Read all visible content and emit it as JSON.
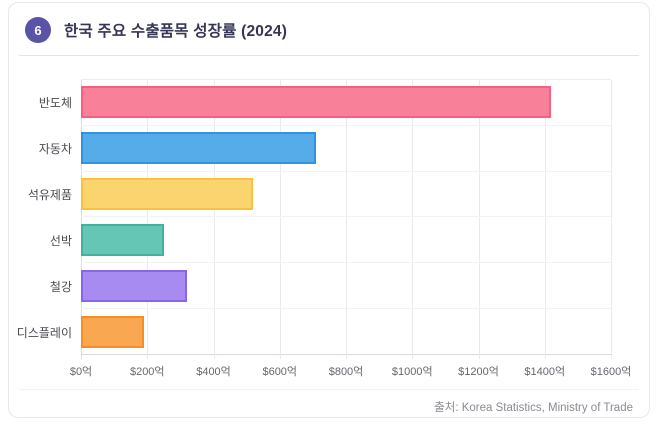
{
  "header": {
    "badge": "6",
    "title": "한국 주요 수출품목 성장률 (2024)"
  },
  "colors": {
    "badge_bg": "#5a54a6",
    "title_text": "#363654",
    "axis_label": "#67676f",
    "category_label": "#4b4b52",
    "source_text": "#8b8b93"
  },
  "chart_data": {
    "type": "bar",
    "orientation": "horizontal",
    "title": "한국 주요 수출품목 성장률 (2024)",
    "categories": [
      "반도체",
      "자동차",
      "석유제품",
      "선박",
      "철강",
      "디스플레이"
    ],
    "category_ids": [
      "semiconductors",
      "automobiles",
      "petroleum-products",
      "ships",
      "steel",
      "displays"
    ],
    "values": [
      1420,
      710,
      520,
      250,
      320,
      190
    ],
    "value_unit": "억 달러 (USD hundred-million)",
    "xlabel": "",
    "ylabel": "",
    "xlim": [
      0,
      1600
    ],
    "x_tick_values": [
      0,
      200,
      400,
      600,
      800,
      1000,
      1200,
      1400,
      1600
    ],
    "x_tick_labels": [
      "$0억",
      "$200억",
      "$400억",
      "$600억",
      "$800억",
      "$1000억",
      "$1200억",
      "$1400억",
      "$1600억"
    ],
    "grid": true,
    "legend": false,
    "bar_fill_colors": [
      "#F88098",
      "#55ACE8",
      "#FBD36F",
      "#66C6B6",
      "#A78BF0",
      "#F9A851"
    ],
    "bar_border_colors": [
      "#F46082",
      "#2F94DD",
      "#F8C23B",
      "#41B2A0",
      "#8B64EC",
      "#F78D23"
    ]
  },
  "footer": {
    "source": "출처: Korea Statistics, Ministry of Trade"
  }
}
